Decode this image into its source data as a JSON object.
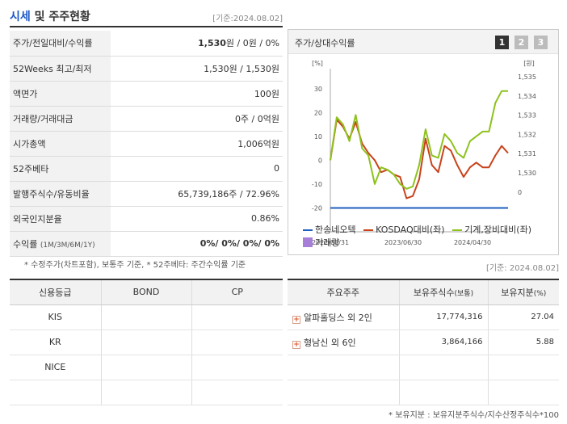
{
  "header": {
    "title_blue": "시세",
    "title_rest": " 및 주주현황",
    "date": "[기준:2024.08.02]"
  },
  "summary": [
    {
      "label": "주가/전일대비/수익률",
      "value_bold": "1,530",
      "value_rest": "원 / 0원 / 0%"
    },
    {
      "label": "52Weeks 최고/최저",
      "value": "1,530원 / 1,530원"
    },
    {
      "label": "액면가",
      "value": "100원"
    },
    {
      "label": "거래량/거래대금",
      "value": "0주 / 0억원"
    },
    {
      "label": "시가총액",
      "value": "1,006억원"
    },
    {
      "label": "52주베타",
      "value": "0"
    },
    {
      "label": "발행주식수/유동비율",
      "value": "65,739,186주 / 72.96%"
    },
    {
      "label": "외국인지분율",
      "value": "0.86%"
    },
    {
      "label": "수익률",
      "label_small": "(1M/3M/6M/1Y)",
      "value": "0%/ 0%/ 0%/ 0%"
    }
  ],
  "note_left": "* 수정주가(차트포함), 보통주 기준, * 52주베타: 주간수익률 기준",
  "chart": {
    "title": "주가/상대수익률",
    "pages": [
      "1",
      "2",
      "3"
    ],
    "legend": [
      {
        "name": "한송네오텍",
        "color": "#1f5fbf",
        "type": "line"
      },
      {
        "name": "KOSDAQ대비(좌)",
        "color": "#c8421a",
        "type": "line"
      },
      {
        "name": "기계,장비대비(좌)",
        "color": "#8ec21e",
        "type": "line"
      },
      {
        "name": "거래량",
        "color": "#a77fd8",
        "type": "square"
      }
    ]
  },
  "chart_data": {
    "type": "line",
    "left_unit": "[%]",
    "right_unit": "[원]",
    "left_ticks": [
      "30",
      "20",
      "10",
      "0",
      "-10",
      "-20"
    ],
    "right_ticks": [
      "1,535",
      "1,534",
      "1,533",
      "1,532",
      "1,531",
      "1,530",
      "0"
    ],
    "x_ticks": [
      "2022/08/31",
      "2023/06/30",
      "2024/04/30"
    ],
    "ylim": [
      -30,
      35
    ],
    "series": [
      {
        "name": "한송네오텍",
        "color": "#1f5fbf",
        "values": [
          -20,
          -20,
          -20,
          -20,
          -20,
          -20,
          -20,
          -20,
          -20,
          -20,
          -20,
          -20,
          -20,
          -20,
          -20,
          -20,
          -20,
          -20,
          -20,
          -20,
          -20,
          -20,
          -20,
          -20,
          -20,
          -20,
          -20,
          -20,
          -20
        ]
      },
      {
        "name": "KOSDAQ대비(좌)",
        "color": "#c8421a",
        "values": [
          0,
          17,
          14,
          9,
          16,
          7,
          3,
          0,
          -5,
          -4,
          -6,
          -7,
          -16,
          -15,
          -8,
          9,
          -2,
          -5,
          6,
          4,
          -2,
          -7,
          -3,
          -1,
          -3,
          -3,
          2,
          6,
          3
        ]
      },
      {
        "name": "기계,장비대비(좌)",
        "color": "#8ec21e",
        "values": [
          0,
          18,
          15,
          8,
          19,
          5,
          2,
          -10,
          -3,
          -4,
          -6,
          -10,
          -12,
          -11,
          -2,
          13,
          2,
          1,
          11,
          8,
          3,
          1,
          8,
          10,
          12,
          12,
          24,
          29,
          29
        ]
      }
    ]
  },
  "date_right": "[기준: 2024.08.02]",
  "credit": {
    "headers": [
      "신용등급",
      "BOND",
      "CP"
    ],
    "rows": [
      {
        "agency": "KIS",
        "bond": "",
        "cp": ""
      },
      {
        "agency": "KR",
        "bond": "",
        "cp": ""
      },
      {
        "agency": "NICE",
        "bond": "",
        "cp": ""
      },
      {
        "agency": "",
        "bond": "",
        "cp": ""
      }
    ]
  },
  "holders": {
    "headers": {
      "name": "주요주주",
      "shares": "보유주식수",
      "shares_small": "(보통)",
      "ratio": "보유지분",
      "ratio_small": "(%)"
    },
    "rows": [
      {
        "name": "알파홀딩스 외 2인",
        "shares": "17,774,316",
        "ratio": "27.04"
      },
      {
        "name": "형남신 외 6인",
        "shares": "3,864,166",
        "ratio": "5.88"
      },
      {
        "name": "",
        "shares": "",
        "ratio": ""
      },
      {
        "name": "",
        "shares": "",
        "ratio": ""
      }
    ]
  },
  "note_right": "* 보유지분 : 보유지분주식수/지수산정주식수*100"
}
